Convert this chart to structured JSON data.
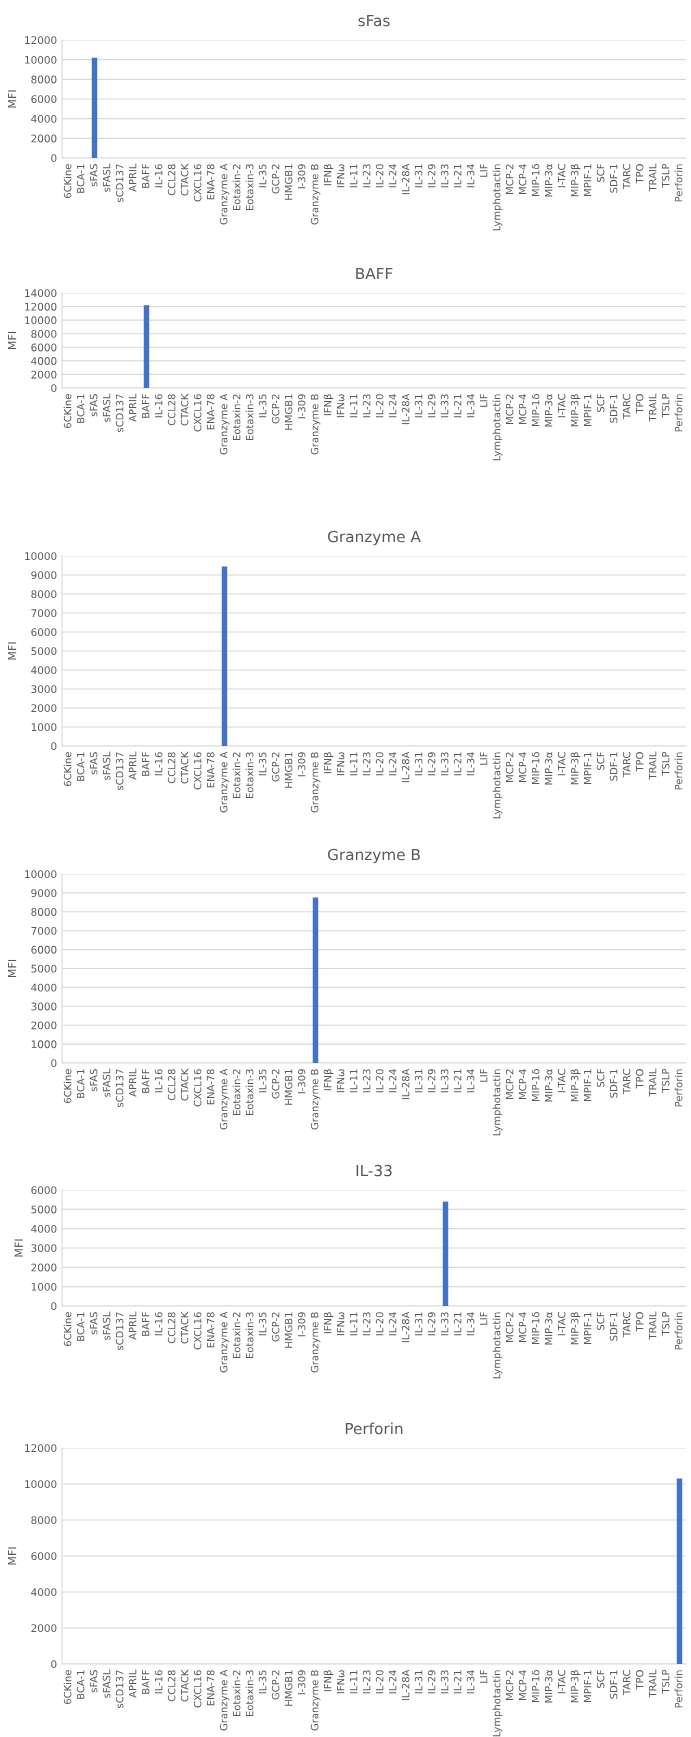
{
  "chart_data": [
    {
      "type": "bar",
      "title": "sFas",
      "ylabel": "MFI",
      "categories": [
        "6CKine",
        "BCA-1",
        "sFAS",
        "sFASL",
        "sCD137",
        "APRIL",
        "BAFF",
        "IL-16",
        "CCL28",
        "CTACK",
        "CXCL16",
        "ENA-78",
        "Granzyme A",
        "Eotaxin-2",
        "Eotaxin-3",
        "IL-35",
        "GCP-2",
        "HMGB1",
        "I-309",
        "Granzyme B",
        "IFNβ",
        "IFNω",
        "IL-11",
        "IL-23",
        "IL-20",
        "IL-24",
        "IL-28A",
        "IL-31",
        "IL-29",
        "IL-33",
        "IL-21",
        "IL-34",
        "LIF",
        "Lymphotactin",
        "MCP-2",
        "MCP-4",
        "MIP-1δ",
        "MIP-3α",
        "I-TAC",
        "MIP-3β",
        "MPIF-1",
        "SCF",
        "SDF-1",
        "TARC",
        "TPO",
        "TRAIL",
        "TSLP",
        "Perforin"
      ],
      "values": [
        0,
        0,
        10200,
        0,
        0,
        0,
        0,
        0,
        0,
        0,
        0,
        0,
        0,
        0,
        0,
        0,
        0,
        0,
        0,
        0,
        0,
        0,
        0,
        0,
        0,
        0,
        0,
        0,
        0,
        0,
        0,
        0,
        0,
        0,
        0,
        0,
        0,
        0,
        0,
        0,
        0,
        0,
        0,
        0,
        0,
        0,
        0,
        0
      ],
      "color": "#4472c4",
      "ylim": [
        0,
        12000
      ],
      "yticks": [
        0,
        2000,
        4000,
        6000,
        8000,
        10000,
        12000
      ],
      "grid": "y"
    },
    {
      "type": "bar",
      "title": "BAFF",
      "ylabel": "MFI",
      "categories": [
        "6CKine",
        "BCA-1",
        "sFAS",
        "sFASL",
        "sCD137",
        "APRIL",
        "BAFF",
        "IL-16",
        "CCL28",
        "CTACK",
        "CXCL16",
        "ENA-78",
        "Granzyme A",
        "Eotaxin-2",
        "Eotaxin-3",
        "IL-35",
        "GCP-2",
        "HMGB1",
        "I-309",
        "Granzyme B",
        "IFNβ",
        "IFNω",
        "IL-11",
        "IL-23",
        "IL-20",
        "IL-24",
        "IL-28A",
        "IL-31",
        "IL-29",
        "IL-33",
        "IL-21",
        "IL-34",
        "LIF",
        "Lymphotactin",
        "MCP-2",
        "MCP-4",
        "MIP-1δ",
        "MIP-3α",
        "I-TAC",
        "MIP-3β",
        "MPIF-1",
        "SCF",
        "SDF-1",
        "TARC",
        "TPO",
        "TRAIL",
        "TSLP",
        "Perforin"
      ],
      "values": [
        0,
        0,
        0,
        0,
        0,
        0,
        12200,
        0,
        0,
        0,
        0,
        0,
        0,
        0,
        0,
        0,
        0,
        0,
        0,
        0,
        0,
        0,
        0,
        0,
        0,
        0,
        0,
        0,
        0,
        0,
        0,
        0,
        0,
        0,
        0,
        0,
        0,
        0,
        0,
        0,
        0,
        0,
        0,
        0,
        0,
        0,
        0,
        0
      ],
      "color": "#4472c4",
      "ylim": [
        0,
        14000
      ],
      "yticks": [
        0,
        2000,
        4000,
        6000,
        8000,
        10000,
        12000,
        14000
      ],
      "grid": "y"
    },
    {
      "type": "bar",
      "title": "Granzyme A",
      "ylabel": "MFI",
      "categories": [
        "6CKine",
        "BCA-1",
        "sFAS",
        "sFASL",
        "sCD137",
        "APRIL",
        "BAFF",
        "IL-16",
        "CCL28",
        "CTACK",
        "CXCL16",
        "ENA-78",
        "Granzyme A",
        "Eotaxin-2",
        "Eotaxin-3",
        "IL-35",
        "GCP-2",
        "HMGB1",
        "I-309",
        "Granzyme B",
        "IFNβ",
        "IFNω",
        "IL-11",
        "IL-23",
        "IL-20",
        "IL-24",
        "IL-28A",
        "IL-31",
        "IL-29",
        "IL-33",
        "IL-21",
        "IL-34",
        "LIF",
        "Lymphotactin",
        "MCP-2",
        "MCP-4",
        "MIP-1δ",
        "MIP-3α",
        "I-TAC",
        "MIP-3β",
        "MPIF-1",
        "SCF",
        "SDF-1",
        "TARC",
        "TPO",
        "TRAIL",
        "TSLP",
        "Perforin"
      ],
      "values": [
        0,
        0,
        0,
        0,
        0,
        0,
        0,
        0,
        0,
        0,
        0,
        0,
        9450,
        0,
        0,
        0,
        0,
        0,
        0,
        0,
        0,
        0,
        0,
        0,
        0,
        0,
        0,
        0,
        0,
        0,
        0,
        0,
        0,
        0,
        0,
        0,
        0,
        0,
        0,
        0,
        0,
        0,
        0,
        0,
        0,
        0,
        0,
        0
      ],
      "color": "#4472c4",
      "ylim": [
        0,
        10000
      ],
      "yticks": [
        0,
        1000,
        2000,
        3000,
        4000,
        5000,
        6000,
        7000,
        8000,
        9000,
        10000
      ],
      "grid": "y"
    },
    {
      "type": "bar",
      "title": "Granzyme B",
      "ylabel": "MFI",
      "categories": [
        "6CKine",
        "BCA-1",
        "sFAS",
        "sFASL",
        "sCD137",
        "APRIL",
        "BAFF",
        "IL-16",
        "CCL28",
        "CTACK",
        "CXCL16",
        "ENA-78",
        "Granzyme A",
        "Eotaxin-2",
        "Eotaxin-3",
        "IL-35",
        "GCP-2",
        "HMGB1",
        "I-309",
        "Granzyme B",
        "IFNβ",
        "IFNω",
        "IL-11",
        "IL-23",
        "IL-20",
        "IL-24",
        "IL-28A",
        "IL-31",
        "IL-29",
        "IL-33",
        "IL-21",
        "IL-34",
        "LIF",
        "Lymphotactin",
        "MCP-2",
        "MCP-4",
        "MIP-1δ",
        "MIP-3α",
        "I-TAC",
        "MIP-3β",
        "MPIF-1",
        "SCF",
        "SDF-1",
        "TARC",
        "TPO",
        "TRAIL",
        "TSLP",
        "Perforin"
      ],
      "values": [
        0,
        0,
        0,
        0,
        0,
        0,
        0,
        0,
        0,
        0,
        0,
        0,
        0,
        0,
        0,
        0,
        0,
        0,
        0,
        8750,
        0,
        0,
        0,
        0,
        0,
        0,
        0,
        0,
        0,
        0,
        0,
        0,
        0,
        0,
        0,
        0,
        0,
        0,
        0,
        0,
        0,
        0,
        0,
        0,
        0,
        0,
        0,
        0
      ],
      "color": "#4472c4",
      "ylim": [
        0,
        10000
      ],
      "yticks": [
        0,
        1000,
        2000,
        3000,
        4000,
        5000,
        6000,
        7000,
        8000,
        9000,
        10000
      ],
      "grid": "y"
    },
    {
      "type": "bar",
      "title": "IL-33",
      "ylabel": "MFI",
      "categories": [
        "6CKine",
        "BCA-1",
        "sFAS",
        "sFASL",
        "sCD137",
        "APRIL",
        "BAFF",
        "IL-16",
        "CCL28",
        "CTACK",
        "CXCL16",
        "ENA-78",
        "Granzyme A",
        "Eotaxin-2",
        "Eotaxin-3",
        "IL-35",
        "GCP-2",
        "HMGB1",
        "I-309",
        "Granzyme B",
        "IFNβ",
        "IFNω",
        "IL-11",
        "IL-23",
        "IL-20",
        "IL-24",
        "IL-28A",
        "IL-31",
        "IL-29",
        "IL-33",
        "IL-21",
        "IL-34",
        "LIF",
        "Lymphotactin",
        "MCP-2",
        "MCP-4",
        "MIP-1δ",
        "MIP-3α",
        "I-TAC",
        "MIP-3β",
        "MPIF-1",
        "SCF",
        "SDF-1",
        "TARC",
        "TPO",
        "TRAIL",
        "TSLP",
        "Perforin"
      ],
      "values": [
        0,
        0,
        0,
        0,
        0,
        0,
        0,
        0,
        0,
        0,
        0,
        0,
        0,
        0,
        0,
        0,
        0,
        0,
        0,
        0,
        0,
        0,
        0,
        0,
        0,
        0,
        0,
        0,
        0,
        5400,
        0,
        0,
        0,
        0,
        0,
        0,
        0,
        0,
        0,
        0,
        0,
        0,
        0,
        0,
        0,
        0,
        0,
        0
      ],
      "color": "#4472c4",
      "ylim": [
        0,
        6000
      ],
      "yticks": [
        0,
        1000,
        2000,
        3000,
        4000,
        5000,
        6000
      ],
      "grid": "y"
    },
    {
      "type": "bar",
      "title": "Perforin",
      "ylabel": "MFI",
      "categories": [
        "6CKine",
        "BCA-1",
        "sFAS",
        "sFASL",
        "sCD137",
        "APRIL",
        "BAFF",
        "IL-16",
        "CCL28",
        "CTACK",
        "CXCL16",
        "ENA-78",
        "Granzyme A",
        "Eotaxin-2",
        "Eotaxin-3",
        "IL-35",
        "GCP-2",
        "HMGB1",
        "I-309",
        "Granzyme B",
        "IFNβ",
        "IFNω",
        "IL-11",
        "IL-23",
        "IL-20",
        "IL-24",
        "IL-28A",
        "IL-31",
        "IL-29",
        "IL-33",
        "IL-21",
        "IL-34",
        "LIF",
        "Lymphotactin",
        "MCP-2",
        "MCP-4",
        "MIP-1δ",
        "MIP-3α",
        "I-TAC",
        "MIP-3β",
        "MPIF-1",
        "SCF",
        "SDF-1",
        "TARC",
        "TPO",
        "TRAIL",
        "TSLP",
        "Perforin"
      ],
      "values": [
        0,
        0,
        0,
        0,
        0,
        0,
        0,
        0,
        0,
        0,
        0,
        0,
        0,
        0,
        0,
        0,
        0,
        0,
        0,
        0,
        0,
        0,
        0,
        0,
        0,
        0,
        0,
        0,
        0,
        0,
        0,
        0,
        0,
        0,
        0,
        0,
        0,
        0,
        0,
        0,
        0,
        0,
        0,
        0,
        0,
        0,
        0,
        10300
      ],
      "color": "#4472c4",
      "ylim": [
        0,
        12000
      ],
      "yticks": [
        0,
        2000,
        4000,
        6000,
        8000,
        10000,
        12000
      ],
      "grid": "y"
    }
  ]
}
